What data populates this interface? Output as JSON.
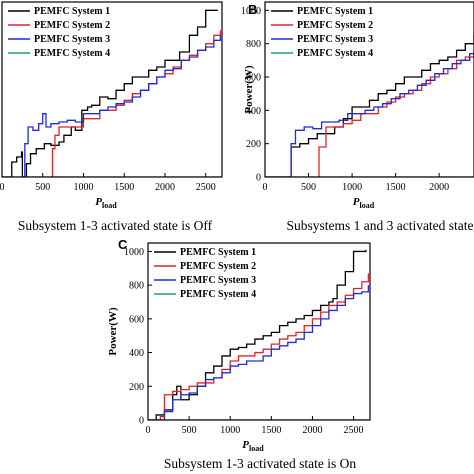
{
  "chart_data": [
    {
      "panel": "",
      "type": "line",
      "xlabel": "P",
      "xlabel_sub": "load",
      "ylabel": "",
      "xlim": [
        0,
        2700
      ],
      "ylim": [
        0,
        1050
      ],
      "xticks": [
        0,
        500,
        1000,
        1500,
        2000,
        2500
      ],
      "yticks": [],
      "legend_position": "top-left",
      "caption": "Subsystem 1-3 activated state is Off",
      "series": [
        {
          "name": "PEMFC System 1",
          "color": "#000000",
          "x": [
            0,
            120,
            180,
            240,
            250,
            300,
            350,
            420,
            520,
            600,
            700,
            760,
            850,
            900,
            980,
            1050,
            1100,
            1200,
            1300,
            1400,
            1500,
            1600,
            1700,
            1800,
            1900,
            2000,
            2100,
            2180,
            2300,
            2400,
            2500,
            2650
          ],
          "y": [
            0,
            90,
            120,
            150,
            0,
            80,
            140,
            170,
            200,
            190,
            210,
            250,
            300,
            280,
            400,
            420,
            430,
            480,
            470,
            520,
            560,
            600,
            600,
            640,
            660,
            700,
            700,
            750,
            850,
            900,
            1000,
            1000
          ]
        },
        {
          "name": "PEMFC System 2",
          "color": "#e0252a",
          "x": [
            600,
            620,
            650,
            700,
            800,
            900,
            1000,
            1100,
            1200,
            1300,
            1400,
            1500,
            1600,
            1700,
            1800,
            1900,
            2000,
            2100,
            2200,
            2300,
            2400,
            2500,
            2600,
            2680
          ],
          "y": [
            0,
            170,
            250,
            300,
            300,
            300,
            350,
            350,
            400,
            400,
            430,
            460,
            500,
            520,
            560,
            600,
            620,
            660,
            700,
            730,
            760,
            800,
            850,
            880
          ]
        },
        {
          "name": "PEMFC System 3",
          "color": "#1f2bd6",
          "x": [
            250,
            280,
            320,
            380,
            450,
            500,
            540,
            600,
            700,
            800,
            900,
            1000,
            1100,
            1200,
            1300,
            1400,
            1500,
            1600,
            1700,
            1800,
            1900,
            2000,
            2100,
            2200,
            2300,
            2400,
            2500,
            2600,
            2680
          ],
          "y": [
            0,
            200,
            300,
            280,
            320,
            380,
            300,
            320,
            330,
            340,
            330,
            380,
            380,
            400,
            420,
            440,
            450,
            480,
            520,
            560,
            600,
            640,
            650,
            700,
            720,
            760,
            780,
            820,
            850
          ]
        },
        {
          "name": "PEMFC System 4",
          "color": "#1aa063",
          "x": [
            0,
            2700
          ],
          "y": [
            0,
            0
          ]
        }
      ]
    },
    {
      "panel": "B",
      "type": "line",
      "xlabel": "P",
      "xlabel_sub": "load",
      "ylabel": "Power(W)",
      "xlim": [
        0,
        2400
      ],
      "ylim": [
        0,
        1050
      ],
      "xticks": [
        0,
        500,
        1000,
        1500,
        2000
      ],
      "yticks": [
        0,
        200,
        400,
        600,
        800,
        1000
      ],
      "legend_position": "top-left",
      "caption": "Subsystems 1 and 3 activated state",
      "series": [
        {
          "name": "PEMFC System 1",
          "color": "#000000",
          "x": [
            0,
            200,
            300,
            400,
            500,
            600,
            700,
            800,
            900,
            1000,
            1100,
            1200,
            1300,
            1400,
            1500,
            1600,
            1700,
            1800,
            1900,
            2000,
            2100,
            2200,
            2300,
            2400
          ],
          "y": [
            0,
            0,
            180,
            200,
            230,
            260,
            260,
            300,
            350,
            420,
            420,
            460,
            500,
            520,
            560,
            600,
            600,
            640,
            680,
            700,
            720,
            760,
            800,
            850
          ]
        },
        {
          "name": "PEMFC System 2",
          "color": "#e0252a",
          "x": [
            600,
            620,
            700,
            800,
            900,
            1000,
            1100,
            1200,
            1300,
            1400,
            1500,
            1600,
            1700,
            1800,
            1900,
            2000,
            2100,
            2200,
            2300,
            2400
          ],
          "y": [
            0,
            180,
            300,
            300,
            320,
            340,
            380,
            380,
            420,
            450,
            480,
            500,
            520,
            560,
            600,
            620,
            650,
            700,
            720,
            750
          ]
        },
        {
          "name": "PEMFC System 3",
          "color": "#1f2bd6",
          "x": [
            250,
            300,
            350,
            450,
            550,
            650,
            750,
            850,
            950,
            1050,
            1150,
            1250,
            1350,
            1450,
            1550,
            1650,
            1750,
            1850,
            1950,
            2050,
            2150,
            2250,
            2350,
            2400
          ],
          "y": [
            0,
            200,
            280,
            300,
            290,
            330,
            330,
            340,
            380,
            380,
            400,
            420,
            440,
            470,
            500,
            520,
            550,
            580,
            620,
            650,
            680,
            700,
            740,
            760
          ]
        },
        {
          "name": "PEMFC System 4",
          "color": "#1aa063",
          "x": [
            0,
            2400
          ],
          "y": [
            0,
            0
          ]
        }
      ]
    },
    {
      "panel": "C",
      "type": "line",
      "xlabel": "P",
      "xlabel_sub": "load",
      "ylabel": "Power(W)",
      "xlim": [
        0,
        2700
      ],
      "ylim": [
        0,
        1050
      ],
      "xticks": [
        0,
        500,
        1000,
        1500,
        2000,
        2500
      ],
      "yticks": [
        0,
        200,
        400,
        600,
        800,
        1000
      ],
      "legend_position": "top-left",
      "caption": "Subsystem 1-3 activated state is On",
      "series": [
        {
          "name": "PEMFC System 1",
          "color": "#000000",
          "x": [
            0,
            100,
            200,
            300,
            350,
            400,
            500,
            600,
            700,
            800,
            900,
            1000,
            1100,
            1200,
            1300,
            1400,
            1500,
            1600,
            1700,
            1800,
            1900,
            2000,
            2100,
            2200,
            2250,
            2300,
            2400,
            2500,
            2650
          ],
          "y": [
            0,
            30,
            60,
            150,
            200,
            120,
            150,
            200,
            280,
            320,
            380,
            420,
            430,
            450,
            480,
            500,
            520,
            560,
            580,
            600,
            620,
            650,
            680,
            700,
            720,
            800,
            880,
            1000,
            1010
          ]
        },
        {
          "name": "PEMFC System 2",
          "color": "#e0252a",
          "x": [
            0,
            150,
            200,
            300,
            400,
            500,
            600,
            700,
            800,
            900,
            1000,
            1100,
            1200,
            1300,
            1400,
            1500,
            1600,
            1700,
            1800,
            1900,
            2000,
            2100,
            2200,
            2300,
            2400,
            2500,
            2600,
            2680
          ],
          "y": [
            0,
            20,
            150,
            170,
            180,
            200,
            220,
            220,
            250,
            300,
            350,
            380,
            380,
            400,
            420,
            450,
            480,
            500,
            520,
            560,
            600,
            640,
            680,
            700,
            740,
            780,
            820,
            870
          ]
        },
        {
          "name": "PEMFC System 3",
          "color": "#1f2bd6",
          "x": [
            0,
            200,
            300,
            400,
            500,
            600,
            700,
            800,
            900,
            1000,
            1100,
            1200,
            1300,
            1400,
            1500,
            1600,
            1700,
            1800,
            1900,
            2000,
            2100,
            2200,
            2300,
            2400,
            2500,
            2600,
            2680
          ],
          "y": [
            0,
            50,
            120,
            150,
            160,
            200,
            240,
            250,
            280,
            320,
            330,
            350,
            350,
            380,
            420,
            440,
            460,
            480,
            520,
            560,
            600,
            650,
            680,
            720,
            750,
            760,
            800
          ]
        },
        {
          "name": "PEMFC System 4",
          "color": "#1aa063",
          "x": [
            0,
            2700
          ],
          "y": [
            0,
            0
          ]
        }
      ]
    }
  ]
}
